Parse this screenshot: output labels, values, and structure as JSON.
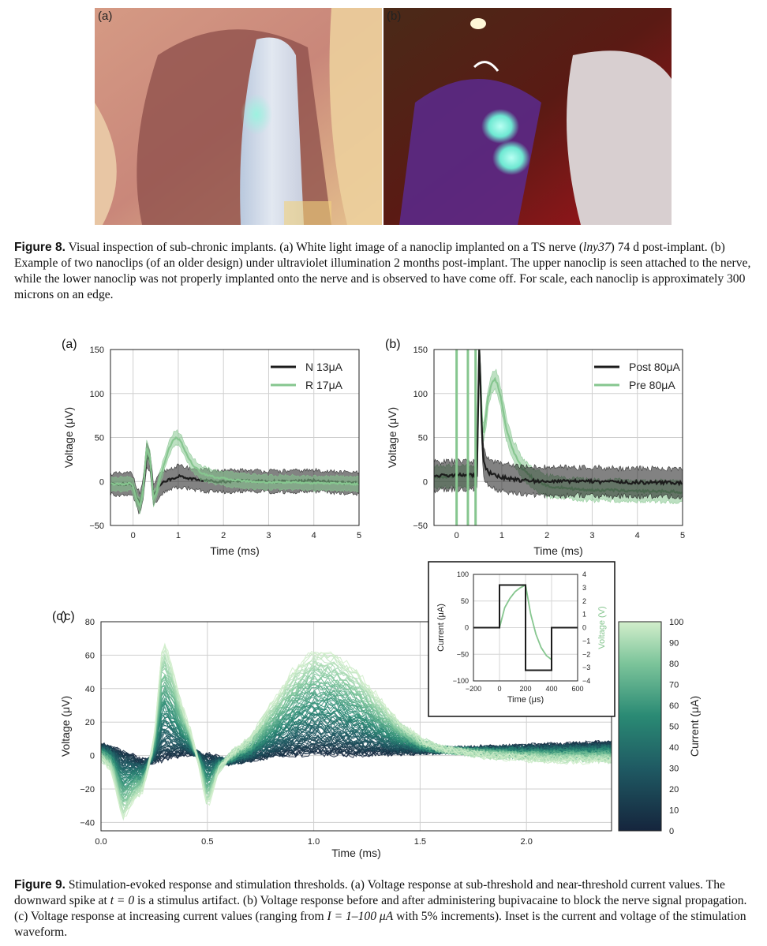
{
  "figure8": {
    "panel_a_label": "(a)",
    "panel_b_label": "(b)",
    "caption_label": "Figure 8.",
    "caption_text_1": " Visual inspection of sub-chronic implants. (a) White light image of a nanoclip implanted on a TS nerve (",
    "caption_italic": "lny37",
    "caption_text_2": ") 74 d post-implant. (b) Example of two nanoclips (of an older design) under ultraviolet illumination 2 months post-implant. The upper nanoclip is seen attached to the nerve, while the lower nanoclip was not properly implanted onto the nerve and is observed to have come off. For scale, each nanoclip is approximately 300 microns on an edge."
  },
  "figure9": {
    "caption_label": "Figure 9.",
    "caption_text_1": " Stimulation-evoked response and stimulation thresholds. (a) Voltage response at sub-threshold and near-threshold current values. The downward spike at ",
    "caption_math_1": "t = 0",
    "caption_text_2": " is a stimulus artifact. (b) Voltage response before and after administering bupivacaine to block the nerve signal propagation. (c) Voltage response at increasing current values (ranging from ",
    "caption_math_2": "I = 1–100 μA",
    "caption_text_3": " with 5% increments). Inset is the current and voltage of the stimulation waveform."
  },
  "colors": {
    "dark_trace": "#1c1c1c",
    "green_trace": "#86c68f",
    "colormap_low": "#15253d",
    "colormap_mid": "#2a8a74",
    "colormap_high": "#cdebc4"
  },
  "chart_data": [
    {
      "id": "a",
      "type": "line",
      "panel_label": "(a)",
      "xlabel": "Time (ms)",
      "ylabel": "Voltage (μV)",
      "xlim": [
        -0.5,
        5
      ],
      "ylim": [
        -50,
        150
      ],
      "xticks": [
        0,
        1,
        2,
        3,
        4,
        5
      ],
      "yticks": [
        -50,
        0,
        50,
        100,
        150
      ],
      "grid": true,
      "legend_position": "top-right",
      "series": [
        {
          "name": "N 13μA",
          "color": "#1c1c1c",
          "x": [
            -0.5,
            -0.2,
            -0.05,
            0.0,
            0.08,
            0.15,
            0.22,
            0.3,
            0.38,
            0.45,
            0.52,
            0.6,
            0.7,
            0.85,
            1.0,
            1.3,
            1.6,
            2.0,
            2.5,
            3.0,
            3.5,
            4.0,
            4.5,
            5.0
          ],
          "y": [
            -3,
            -3,
            -2,
            -5,
            -18,
            -25,
            -10,
            30,
            22,
            -15,
            -10,
            -3,
            0,
            3,
            6,
            3,
            1,
            0,
            1,
            0,
            0,
            1,
            -1,
            -2
          ],
          "band": 12
        },
        {
          "name": "R 17μA",
          "color": "#86c68f",
          "x": [
            -0.5,
            -0.2,
            -0.05,
            0.0,
            0.08,
            0.15,
            0.22,
            0.3,
            0.38,
            0.45,
            0.52,
            0.6,
            0.7,
            0.8,
            0.9,
            0.97,
            1.05,
            1.15,
            1.3,
            1.5,
            1.8,
            2.2,
            2.6,
            3.0,
            3.5,
            4.0,
            4.5,
            5.0
          ],
          "y": [
            -3,
            -3,
            -2,
            -6,
            -20,
            -28,
            -12,
            38,
            26,
            -20,
            -12,
            5,
            22,
            38,
            48,
            50,
            46,
            35,
            20,
            10,
            5,
            2,
            0,
            -1,
            -1,
            -2,
            -2,
            -3
          ],
          "band": 8
        }
      ]
    },
    {
      "id": "b",
      "type": "line",
      "panel_label": "(b)",
      "xlabel": "Time (ms)",
      "ylabel": "Voltage (μV)",
      "xlim": [
        -0.5,
        5
      ],
      "ylim": [
        -50,
        150
      ],
      "xticks": [
        0,
        1,
        2,
        3,
        4,
        5
      ],
      "yticks": [
        -50,
        0,
        50,
        100,
        150
      ],
      "grid": true,
      "legend_position": "top-right",
      "series": [
        {
          "name": "Post 80μA",
          "color": "#1c1c1c",
          "x": [
            -0.5,
            -0.2,
            0.0,
            0.45,
            0.5,
            0.53,
            0.56,
            0.6,
            0.65,
            0.72,
            0.8,
            0.9,
            1.0,
            1.2,
            1.5,
            2.0,
            2.5,
            3.0,
            3.5,
            4.0,
            4.5,
            5.0
          ],
          "y": [
            6,
            7,
            7,
            7,
            150,
            110,
            50,
            22,
            14,
            10,
            8,
            6,
            5,
            3,
            1,
            0,
            0,
            0,
            -1,
            -1,
            -1,
            -2
          ],
          "band": 16
        },
        {
          "name": "Pre 80μA",
          "color": "#86c68f",
          "x": [
            -0.5,
            0.0,
            0.45,
            0.5,
            0.54,
            0.58,
            0.64,
            0.7,
            0.78,
            0.86,
            0.92,
            1.0,
            1.1,
            1.25,
            1.45,
            1.7,
            2.0,
            2.5,
            3.0,
            3.5,
            4.0,
            4.5,
            5.0
          ],
          "y": [
            5,
            6,
            6,
            150,
            100,
            50,
            70,
            95,
            112,
            116,
            108,
            90,
            60,
            35,
            15,
            3,
            -5,
            -8,
            -10,
            -10,
            -11,
            -11,
            -12
          ],
          "band": 12
        }
      ],
      "artifact_lines_x": [
        0.0,
        0.25,
        0.42
      ]
    },
    {
      "id": "c",
      "type": "line",
      "panel_label": "(c)",
      "xlabel": "Time (ms)",
      "ylabel": "Voltage (μV)",
      "xlim": [
        0.0,
        2.4
      ],
      "ylim": [
        -45,
        80
      ],
      "xticks": [
        0.0,
        0.5,
        1.0,
        1.5,
        2.0
      ],
      "xtick_labels": [
        "0.0",
        "0.5",
        "1.0",
        "1.5",
        "2.0"
      ],
      "yticks": [
        -40,
        -20,
        0,
        20,
        40,
        60,
        80
      ],
      "grid": true,
      "current_range_uA": [
        1,
        100
      ],
      "current_increment": "5%",
      "colorbar": {
        "label": "Current (μA)",
        "range": [
          0,
          100
        ],
        "ticks": [
          0,
          10,
          20,
          30,
          40,
          50,
          60,
          70,
          80,
          90,
          100
        ]
      },
      "template_high_current": {
        "x": [
          0.0,
          0.05,
          0.1,
          0.15,
          0.2,
          0.25,
          0.29,
          0.33,
          0.38,
          0.42,
          0.46,
          0.5,
          0.55,
          0.6,
          0.7,
          0.8,
          0.9,
          1.0,
          1.1,
          1.2,
          1.3,
          1.4,
          1.5,
          1.6,
          1.8,
          2.0,
          2.2,
          2.4
        ],
        "y": [
          -2,
          -8,
          -38,
          -28,
          -20,
          10,
          70,
          55,
          30,
          15,
          -5,
          -32,
          -10,
          0,
          10,
          30,
          50,
          62,
          60,
          50,
          35,
          20,
          10,
          4,
          0,
          -2,
          -3,
          -3
        ]
      },
      "template_low_current": {
        "x": [
          0.0,
          0.1,
          0.2,
          0.3,
          0.4,
          0.5,
          0.6,
          0.8,
          1.0,
          1.2,
          1.4,
          1.6,
          1.8,
          2.0,
          2.2,
          2.4
        ],
        "y": [
          6,
          2,
          -4,
          -2,
          2,
          0,
          -4,
          0,
          2,
          1,
          2,
          3,
          4,
          5,
          6,
          7
        ]
      }
    },
    {
      "id": "c-inset",
      "type": "line",
      "xlabel": "Time (μs)",
      "ylabel_left": "Current (μA)",
      "ylabel_right": "Voltage (V)",
      "xlim": [
        -200,
        600
      ],
      "ylim_left": [
        -100,
        100
      ],
      "ylim_right": [
        -4,
        4
      ],
      "xticks": [
        -200,
        0,
        200,
        400,
        600
      ],
      "yticks_left": [
        -100,
        -50,
        0,
        50,
        100
      ],
      "yticks_right": [
        -4,
        -3,
        -2,
        -1,
        0,
        1,
        2,
        3,
        4
      ],
      "grid": true,
      "series": [
        {
          "name": "current",
          "axis": "left",
          "color": "#1c1c1c",
          "x": [
            -200,
            0,
            0,
            200,
            200,
            400,
            400,
            600
          ],
          "y": [
            0,
            0,
            80,
            80,
            -80,
            -80,
            0,
            0
          ]
        },
        {
          "name": "voltage",
          "axis": "right",
          "color": "#86c68f",
          "x": [
            -200,
            0,
            40,
            80,
            120,
            160,
            200,
            240,
            280,
            320,
            360,
            400,
            400,
            600
          ],
          "y": [
            0,
            0,
            1.5,
            2.2,
            2.7,
            3.0,
            3.2,
            1.0,
            -0.5,
            -1.5,
            -2.1,
            -2.4,
            0,
            0
          ]
        }
      ]
    }
  ]
}
